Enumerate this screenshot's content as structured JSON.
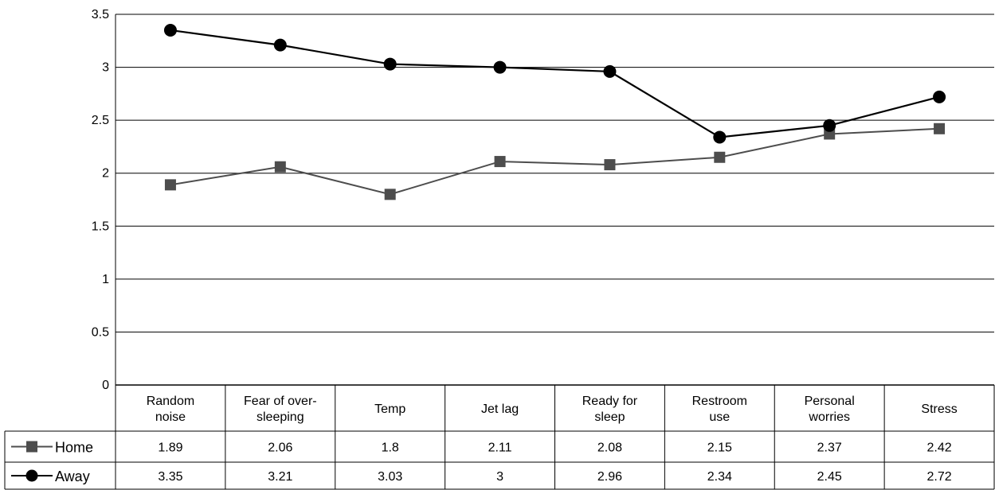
{
  "chart_data": {
    "type": "line",
    "categories": [
      [
        "Random",
        "noise"
      ],
      [
        "Fear of over-",
        "sleeping"
      ],
      [
        "Temp"
      ],
      [
        "Jet lag"
      ],
      [
        "Ready for",
        "sleep"
      ],
      [
        "Restroom",
        "use"
      ],
      [
        "Personal",
        "worries"
      ],
      [
        "Stress"
      ]
    ],
    "series": [
      {
        "name": "Home",
        "values": [
          1.89,
          2.06,
          1.8,
          2.11,
          2.08,
          2.15,
          2.37,
          2.42
        ],
        "labels": [
          "1.89",
          "2.06",
          "1.8",
          "2.11",
          "2.08",
          "2.15",
          "2.37",
          "2.42"
        ],
        "color": "#4d4d4d",
        "marker": "square"
      },
      {
        "name": "Away",
        "values": [
          3.35,
          3.21,
          3.03,
          3,
          2.96,
          2.34,
          2.45,
          2.72
        ],
        "labels": [
          "3.35",
          "3.21",
          "3.03",
          "3",
          "2.96",
          "2.34",
          "2.45",
          "2.72"
        ],
        "color": "#000000",
        "marker": "circle"
      }
    ],
    "ylim": [
      0,
      3.5
    ],
    "yticks": [
      "0",
      "0.5",
      "1",
      "1.5",
      "2",
      "2.5",
      "3",
      "3.5"
    ],
    "grid": true,
    "legend": "data-table-left"
  }
}
